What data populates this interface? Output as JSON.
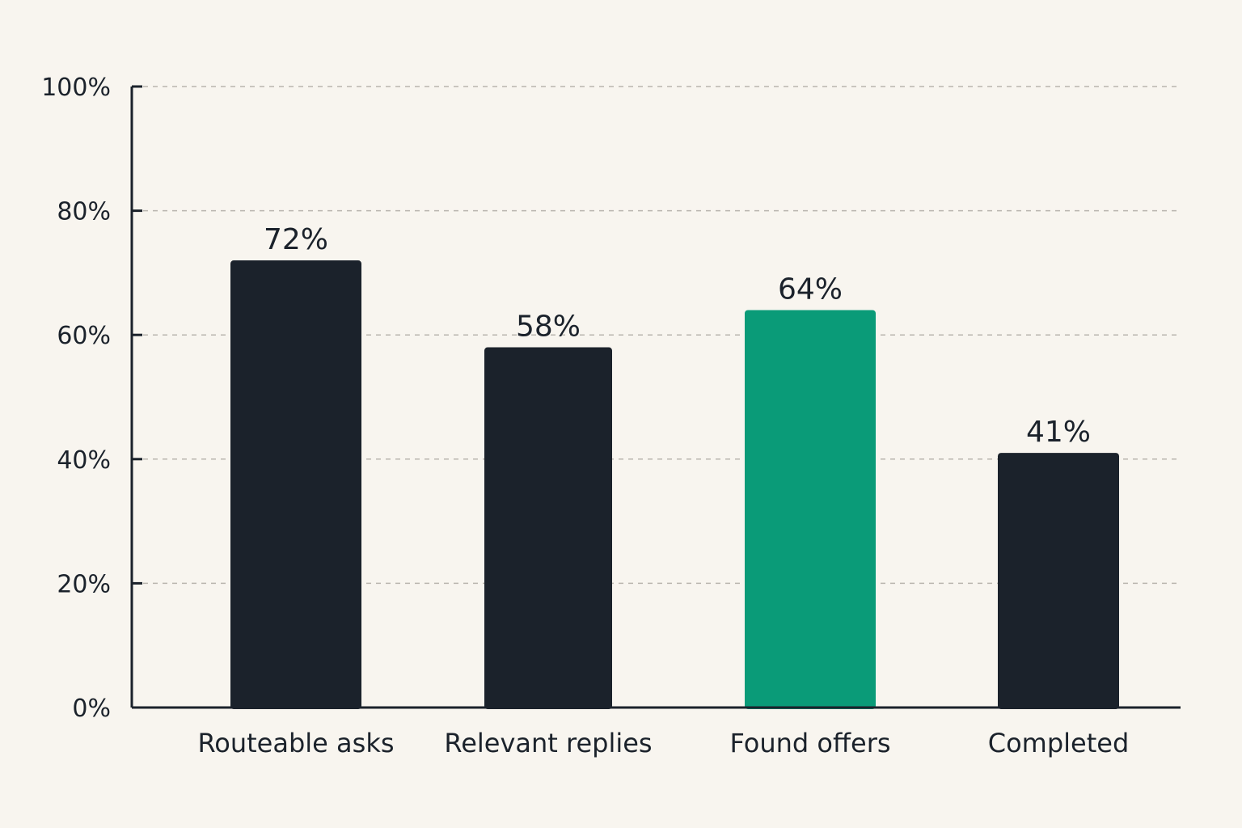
{
  "chart_data": {
    "type": "bar",
    "title": "",
    "xlabel": "",
    "ylabel": "",
    "categories": [
      "Routeable asks",
      "Relevant replies",
      "Found offers",
      "Completed"
    ],
    "values": [
      72,
      58,
      64,
      41
    ],
    "value_labels": [
      "72%",
      "58%",
      "64%",
      "41%"
    ],
    "ylim": [
      0,
      100
    ],
    "yticks": [
      0,
      20,
      40,
      60,
      80,
      100
    ],
    "ytick_labels": [
      "0%",
      "20%",
      "40%",
      "60%",
      "80%",
      "100%"
    ],
    "grid": "horizontal dashed",
    "bar_colors": [
      "#1b222b",
      "#1b222b",
      "#0a9b78",
      "#1b222b"
    ],
    "highlight_category": "Found offers",
    "background": "#f8f5ef"
  }
}
